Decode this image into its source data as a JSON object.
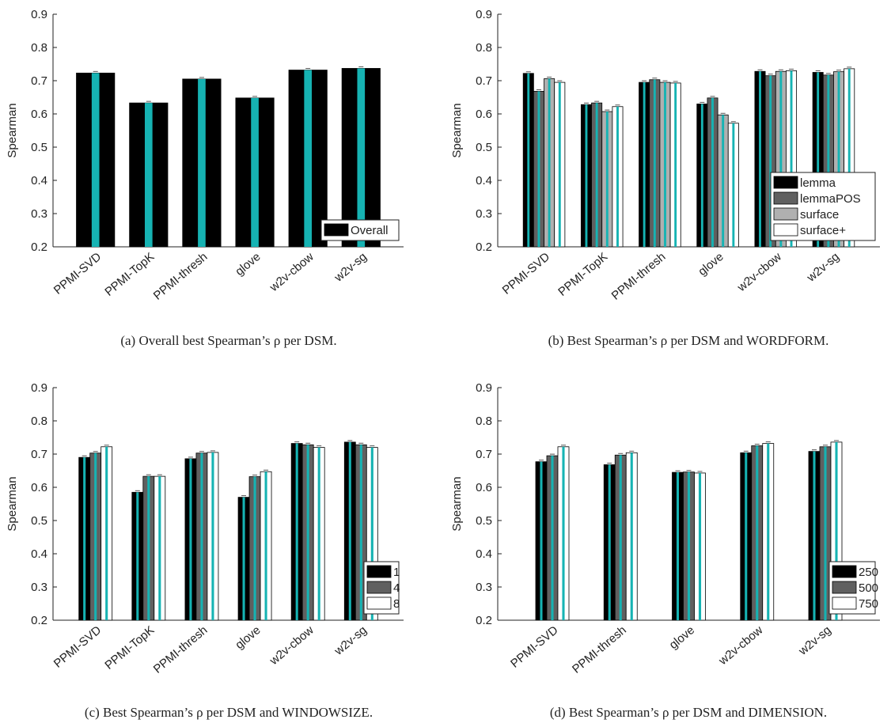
{
  "colors": {
    "black": "#000000",
    "teal": "#16b3b3",
    "dark_gray": "#606060",
    "light_gray": "#b0b0b0",
    "white": "#ffffff",
    "error_bar": "#555555"
  },
  "chart_data": [
    {
      "type": "bar",
      "caption": "(a) Overall best Spearman’s ρ per DSM.",
      "ylabel": "Spearman",
      "ylim": [
        0.2,
        0.9
      ],
      "yticks": [
        "0.2",
        "0.3",
        "0.4",
        "0.5",
        "0.6",
        "0.7",
        "0.8",
        "0.9"
      ],
      "categories": [
        "PPMI-SVD",
        "PPMI-TopK",
        "PPMI-thresh",
        "glove",
        "w2v-cbow",
        "w2v-sg"
      ],
      "series": [
        {
          "name": "Overall",
          "values": [
            0.723,
            0.633,
            0.705,
            0.648,
            0.732,
            0.737
          ]
        }
      ],
      "legend": "bottom-right"
    },
    {
      "type": "bar",
      "caption": "(b) Best Spearman’s ρ per DSM and WORDFORM.",
      "ylabel": "Spearman",
      "ylim": [
        0.2,
        0.9
      ],
      "yticks": [
        "0.2",
        "0.3",
        "0.4",
        "0.5",
        "0.6",
        "0.7",
        "0.8",
        "0.9"
      ],
      "categories": [
        "PPMI-SVD",
        "PPMI-TopK",
        "PPMI-thresh",
        "glove",
        "w2v-cbow",
        "w2v-sg"
      ],
      "series": [
        {
          "name": "lemma",
          "values": [
            0.722,
            0.628,
            0.695,
            0.63,
            0.728,
            0.725
          ]
        },
        {
          "name": "lemmaPOS",
          "values": [
            0.668,
            0.633,
            0.703,
            0.648,
            0.715,
            0.717
          ]
        },
        {
          "name": "surface",
          "values": [
            0.706,
            0.607,
            0.695,
            0.597,
            0.728,
            0.727
          ]
        },
        {
          "name": "surface+",
          "values": [
            0.695,
            0.622,
            0.693,
            0.572,
            0.73,
            0.736
          ]
        }
      ],
      "legend": "bottom-right"
    },
    {
      "type": "bar",
      "caption": "(c) Best Spearman’s ρ per DSM and WINDOWSIZE.",
      "ylabel": "Spearman",
      "ylim": [
        0.2,
        0.9
      ],
      "yticks": [
        "0.2",
        "0.3",
        "0.4",
        "0.5",
        "0.6",
        "0.7",
        "0.8",
        "0.9"
      ],
      "categories": [
        "PPMI-SVD",
        "PPMI-TopK",
        "PPMI-thresh",
        "glove",
        "w2v-cbow",
        "w2v-sg"
      ],
      "series": [
        {
          "name": "1",
          "values": [
            0.69,
            0.585,
            0.686,
            0.57,
            0.732,
            0.736
          ]
        },
        {
          "name": "4",
          "values": [
            0.703,
            0.633,
            0.703,
            0.632,
            0.728,
            0.728
          ]
        },
        {
          "name": "8",
          "values": [
            0.722,
            0.633,
            0.705,
            0.647,
            0.72,
            0.72
          ]
        }
      ],
      "legend": "bottom-right"
    },
    {
      "type": "bar",
      "caption": "(d) Best Spearman’s ρ per DSM and DIMENSION.",
      "ylabel": "Spearman",
      "ylim": [
        0.2,
        0.9
      ],
      "yticks": [
        "0.2",
        "0.3",
        "0.4",
        "0.5",
        "0.6",
        "0.7",
        "0.8",
        "0.9"
      ],
      "categories": [
        "PPMI-SVD",
        "PPMI-thresh",
        "glove",
        "w2v-cbow",
        "w2v-sg"
      ],
      "series": [
        {
          "name": "250",
          "values": [
            0.677,
            0.668,
            0.645,
            0.704,
            0.708
          ]
        },
        {
          "name": "500",
          "values": [
            0.695,
            0.697,
            0.646,
            0.725,
            0.722
          ]
        },
        {
          "name": "750",
          "values": [
            0.722,
            0.704,
            0.643,
            0.732,
            0.736
          ]
        }
      ],
      "legend": "bottom-right"
    }
  ]
}
